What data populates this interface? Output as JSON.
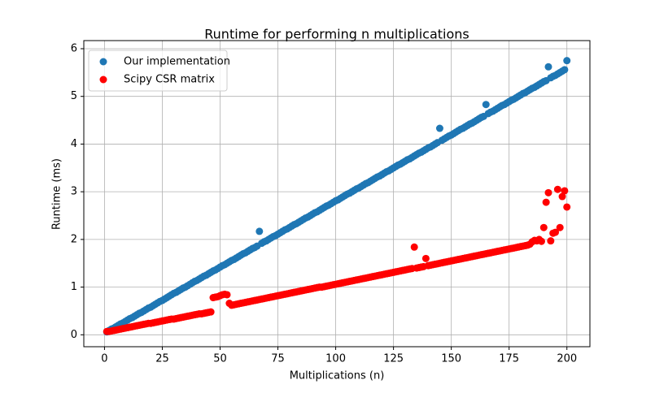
{
  "chart_data": {
    "type": "scatter",
    "title": "Runtime for performing n multiplications",
    "x_label": "Multiplications (n)",
    "y_label": "Runtime (ms)",
    "x": [
      1,
      2,
      3,
      4,
      5,
      6,
      7,
      8,
      9,
      10,
      11,
      12,
      13,
      14,
      15,
      16,
      17,
      18,
      19,
      20,
      21,
      22,
      23,
      24,
      25,
      26,
      27,
      28,
      29,
      30,
      31,
      32,
      33,
      34,
      35,
      36,
      37,
      38,
      39,
      40,
      41,
      42,
      43,
      44,
      45,
      46,
      47,
      48,
      49,
      50,
      51,
      52,
      53,
      54,
      55,
      56,
      57,
      58,
      59,
      60,
      61,
      62,
      63,
      64,
      65,
      66,
      67,
      68,
      69,
      70,
      71,
      72,
      73,
      74,
      75,
      76,
      77,
      78,
      79,
      80,
      81,
      82,
      83,
      84,
      85,
      86,
      87,
      88,
      89,
      90,
      91,
      92,
      93,
      94,
      95,
      96,
      97,
      98,
      99,
      100,
      101,
      102,
      103,
      104,
      105,
      106,
      107,
      108,
      109,
      110,
      111,
      112,
      113,
      114,
      115,
      116,
      117,
      118,
      119,
      120,
      121,
      122,
      123,
      124,
      125,
      126,
      127,
      128,
      129,
      130,
      131,
      132,
      133,
      134,
      135,
      136,
      137,
      138,
      139,
      140,
      141,
      142,
      143,
      144,
      145,
      146,
      147,
      148,
      149,
      150,
      151,
      152,
      153,
      154,
      155,
      156,
      157,
      158,
      159,
      160,
      161,
      162,
      163,
      164,
      165,
      166,
      167,
      168,
      169,
      170,
      171,
      172,
      173,
      174,
      175,
      176,
      177,
      178,
      179,
      180,
      181,
      182,
      183,
      184,
      185,
      186,
      187,
      188,
      189,
      190,
      191,
      192,
      193,
      194,
      195,
      196,
      197,
      198,
      199,
      200
    ],
    "series": [
      {
        "name": "Our implementation",
        "color": "#1f77b4",
        "values": [
          0.06,
          0.09,
          0.12,
          0.14,
          0.17,
          0.2,
          0.23,
          0.25,
          0.28,
          0.31,
          0.34,
          0.36,
          0.39,
          0.42,
          0.45,
          0.47,
          0.5,
          0.53,
          0.56,
          0.58,
          0.61,
          0.64,
          0.67,
          0.7,
          0.72,
          0.75,
          0.78,
          0.81,
          0.84,
          0.87,
          0.89,
          0.92,
          0.95,
          0.98,
          1.0,
          1.03,
          1.06,
          1.09,
          1.12,
          1.14,
          1.17,
          1.2,
          1.23,
          1.25,
          1.28,
          1.31,
          1.34,
          1.36,
          1.39,
          1.42,
          1.45,
          1.47,
          1.5,
          1.53,
          1.56,
          1.58,
          1.61,
          1.64,
          1.67,
          1.7,
          1.72,
          1.75,
          1.78,
          1.81,
          1.83,
          1.86,
          2.17,
          1.92,
          1.95,
          1.97,
          2.0,
          2.03,
          2.06,
          2.08,
          2.11,
          2.14,
          2.17,
          2.2,
          2.22,
          2.25,
          2.28,
          2.31,
          2.33,
          2.36,
          2.39,
          2.42,
          2.45,
          2.47,
          2.5,
          2.53,
          2.56,
          2.58,
          2.61,
          2.64,
          2.67,
          2.7,
          2.72,
          2.75,
          2.78,
          2.81,
          2.83,
          2.86,
          2.89,
          2.92,
          2.95,
          2.97,
          3.0,
          3.03,
          3.06,
          3.08,
          3.11,
          3.14,
          3.17,
          3.19,
          3.22,
          3.25,
          3.28,
          3.31,
          3.33,
          3.36,
          3.39,
          3.42,
          3.44,
          3.47,
          3.5,
          3.53,
          3.56,
          3.58,
          3.61,
          3.64,
          3.67,
          3.69,
          3.72,
          3.75,
          3.78,
          3.81,
          3.83,
          3.86,
          3.89,
          3.92,
          3.94,
          3.97,
          4.0,
          4.03,
          4.33,
          4.08,
          4.11,
          4.14,
          4.17,
          4.19,
          4.22,
          4.25,
          4.28,
          4.31,
          4.33,
          4.36,
          4.39,
          4.42,
          4.44,
          4.47,
          4.5,
          4.53,
          4.56,
          4.58,
          4.83,
          4.64,
          4.67,
          4.69,
          4.72,
          4.75,
          4.78,
          4.81,
          4.83,
          4.86,
          4.89,
          4.92,
          4.94,
          4.97,
          5.0,
          5.03,
          5.06,
          5.08,
          5.11,
          5.14,
          5.17,
          5.19,
          5.22,
          5.25,
          5.28,
          5.31,
          5.33,
          5.62,
          5.39,
          5.42,
          5.44,
          5.47,
          5.5,
          5.53,
          5.56,
          5.75
        ]
      },
      {
        "name": "Scipy CSR matrix",
        "color": "#ff0000",
        "values": [
          0.07,
          0.07,
          0.08,
          0.09,
          0.1,
          0.11,
          0.12,
          0.13,
          0.14,
          0.15,
          0.16,
          0.17,
          0.18,
          0.19,
          0.2,
          0.21,
          0.22,
          0.23,
          0.24,
          0.24,
          0.25,
          0.26,
          0.27,
          0.28,
          0.29,
          0.3,
          0.31,
          0.32,
          0.33,
          0.33,
          0.34,
          0.35,
          0.36,
          0.37,
          0.38,
          0.39,
          0.4,
          0.41,
          0.42,
          0.43,
          0.44,
          0.44,
          0.45,
          0.46,
          0.47,
          0.48,
          0.78,
          0.79,
          0.8,
          0.82,
          0.84,
          0.85,
          0.84,
          0.66,
          0.62,
          0.63,
          0.64,
          0.65,
          0.66,
          0.67,
          0.68,
          0.69,
          0.7,
          0.71,
          0.72,
          0.73,
          0.74,
          0.75,
          0.76,
          0.77,
          0.78,
          0.79,
          0.8,
          0.81,
          0.82,
          0.83,
          0.84,
          0.85,
          0.86,
          0.87,
          0.88,
          0.89,
          0.9,
          0.91,
          0.92,
          0.93,
          0.94,
          0.95,
          0.96,
          0.97,
          0.98,
          0.99,
          1.0,
          1.0,
          1.01,
          1.02,
          1.03,
          1.04,
          1.05,
          1.06,
          1.07,
          1.08,
          1.09,
          1.1,
          1.11,
          1.12,
          1.13,
          1.14,
          1.15,
          1.16,
          1.17,
          1.18,
          1.19,
          1.2,
          1.21,
          1.22,
          1.23,
          1.24,
          1.25,
          1.26,
          1.27,
          1.28,
          1.29,
          1.3,
          1.31,
          1.32,
          1.33,
          1.34,
          1.35,
          1.36,
          1.37,
          1.38,
          1.39,
          1.84,
          1.4,
          1.41,
          1.42,
          1.43,
          1.6,
          1.45,
          1.46,
          1.47,
          1.48,
          1.49,
          1.5,
          1.51,
          1.52,
          1.53,
          1.54,
          1.55,
          1.56,
          1.57,
          1.58,
          1.59,
          1.6,
          1.61,
          1.62,
          1.63,
          1.64,
          1.65,
          1.66,
          1.67,
          1.68,
          1.69,
          1.7,
          1.71,
          1.72,
          1.73,
          1.74,
          1.75,
          1.76,
          1.77,
          1.78,
          1.79,
          1.8,
          1.81,
          1.82,
          1.83,
          1.84,
          1.85,
          1.86,
          1.87,
          1.88,
          1.9,
          1.95,
          1.98,
          1.97,
          2.0,
          1.96,
          2.25,
          2.78,
          2.98,
          1.97,
          2.13,
          2.15,
          3.05,
          2.25,
          2.9,
          3.02,
          2.68
        ]
      }
    ],
    "xlim": [
      -8.95,
      209.95
    ],
    "ylim": [
      -0.25,
      6.17
    ],
    "xticks": [
      0,
      25,
      50,
      75,
      100,
      125,
      150,
      175,
      200
    ],
    "yticks": [
      0,
      1,
      2,
      3,
      4,
      5,
      6
    ],
    "grid": true,
    "legend": "upper left"
  }
}
